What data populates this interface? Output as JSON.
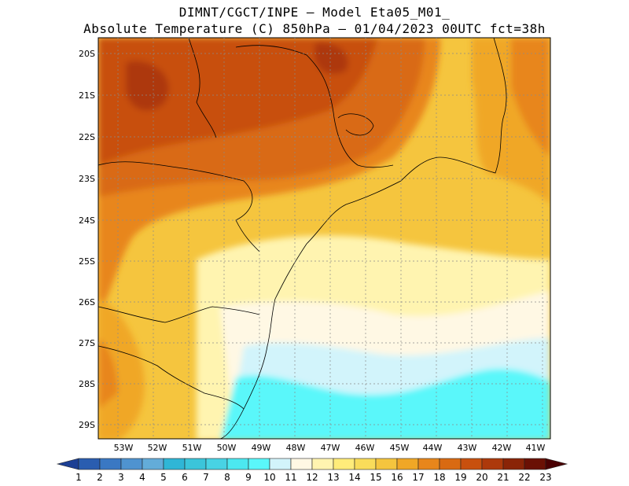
{
  "header": {
    "line1": "DIMNT/CGCT/INPE –  Model Eta05_M01_",
    "line2": "Absolute Temperature (C) 850hPa –  01/04/2023 00UTC fct=38h"
  },
  "map": {
    "lat_labels": [
      "20S",
      "21S",
      "22S",
      "23S",
      "24S",
      "25S",
      "26S",
      "27S",
      "28S",
      "29S"
    ],
    "lon_labels": [
      "53W",
      "52W",
      "51W",
      "50W",
      "49W",
      "48W",
      "47W",
      "46W",
      "45W",
      "44W",
      "43W",
      "42W",
      "41W"
    ]
  },
  "colorbar": {
    "labels": [
      "1",
      "2",
      "3",
      "4",
      "5",
      "6",
      "7",
      "8",
      "9",
      "10",
      "11",
      "12",
      "13",
      "14",
      "15",
      "16",
      "17",
      "18",
      "19",
      "20",
      "21",
      "22",
      "23"
    ],
    "colors": [
      "#1c3f94",
      "#2a5db0",
      "#3a78c3",
      "#4f93d0",
      "#63acd9",
      "#2fb6d6",
      "#3bc5da",
      "#48d3e4",
      "#4ce8f0",
      "#5af7fa",
      "#d2f4fb",
      "#fff8e4",
      "#fff4b0",
      "#ffec7a",
      "#f9dc5a",
      "#f5c53e",
      "#f0a726",
      "#e8861b",
      "#d96a12",
      "#c8500e",
      "#ad390b",
      "#8a2407",
      "#6a1004",
      "#4a0002"
    ]
  }
}
